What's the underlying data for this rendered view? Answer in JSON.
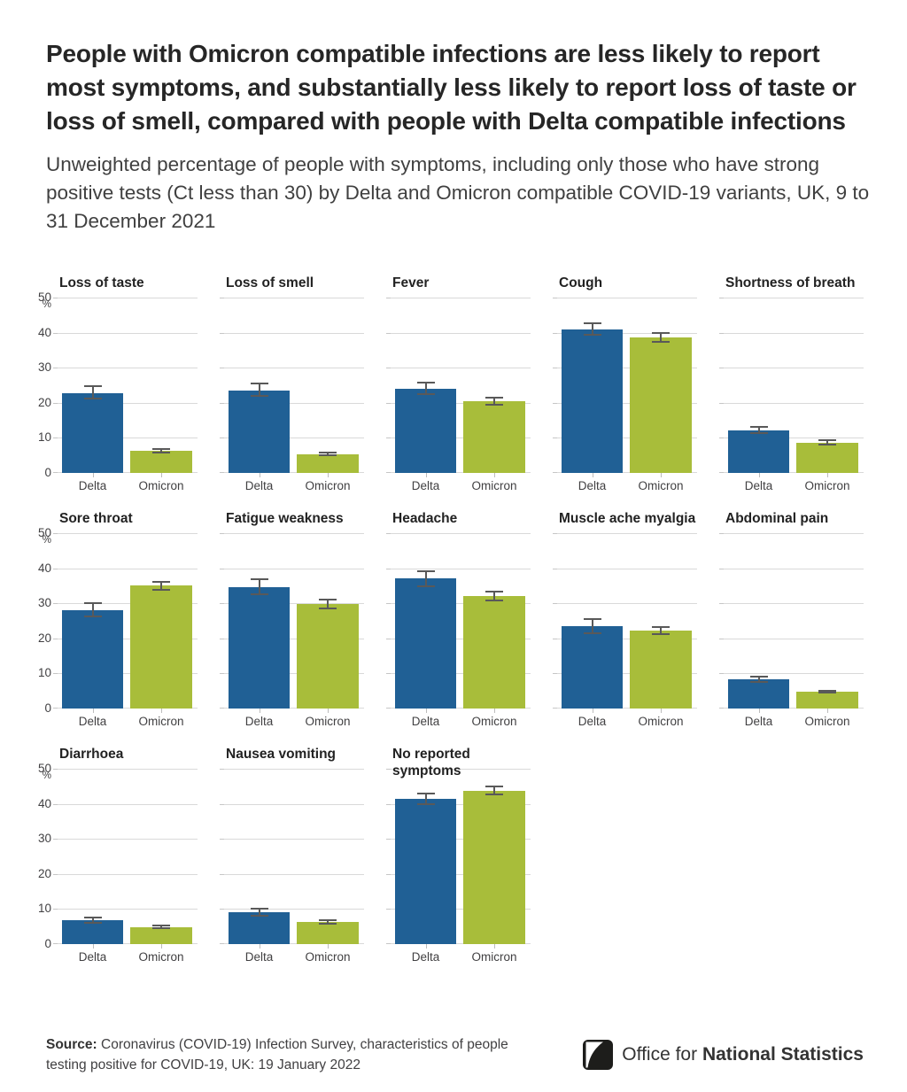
{
  "page": {
    "title": "People with Omicron compatible infections are less likely to report most symptoms, and substantially less likely to report loss of taste or loss of smell, compared with people with Delta compatible infections",
    "subtitle": "Unweighted percentage of people with symptoms, including only those who have strong positive tests (Ct less than 30) by Delta and Omicron compatible COVID-19 variants, UK, 9 to 31 December 2021",
    "source_label": "Source:",
    "source_text": " Coronavirus (COVID-19) Infection Survey, characteristics of people testing positive for COVID-19, UK: 19 January 2022",
    "logo_regular": "Office for ",
    "logo_bold": "National Statistics"
  },
  "colors": {
    "delta": "#206095",
    "omicron": "#a8bd3a",
    "error_bar": "#595959",
    "gridline": "#d9d9d9",
    "title_text": "#262626",
    "body_text": "#414042"
  },
  "chart_data": {
    "type": "bar",
    "categories": [
      "Delta",
      "Omicron"
    ],
    "series_colors": {
      "Delta": "#206095",
      "Omicron": "#a8bd3a"
    },
    "unit": "%",
    "ylim": [
      0,
      50
    ],
    "yticks": [
      0,
      10,
      20,
      30,
      40,
      50
    ],
    "grid": true,
    "error_bars": true,
    "panels": [
      {
        "title_lines": [
          "Loss of taste"
        ],
        "values": [
          22.8,
          6.2
        ],
        "ci_low": [
          21.0,
          5.5
        ],
        "ci_high": [
          25.0,
          7.0
        ],
        "show_axis": true
      },
      {
        "title_lines": [
          "Loss of smell"
        ],
        "values": [
          23.6,
          5.4
        ],
        "ci_low": [
          21.6,
          4.7
        ],
        "ci_high": [
          25.8,
          6.1
        ],
        "show_axis": false
      },
      {
        "title_lines": [
          "Fever"
        ],
        "values": [
          24.0,
          20.4
        ],
        "ci_low": [
          22.2,
          19.1
        ],
        "ci_high": [
          26.0,
          21.6
        ],
        "show_axis": false
      },
      {
        "title_lines": [
          "Cough"
        ],
        "values": [
          41.0,
          38.6
        ],
        "ci_low": [
          39.1,
          37.2
        ],
        "ci_high": [
          42.9,
          40.1
        ],
        "show_axis": false
      },
      {
        "title_lines": [
          "Shortness of breath"
        ],
        "values": [
          12.2,
          8.6
        ],
        "ci_low": [
          11.0,
          7.8
        ],
        "ci_high": [
          13.5,
          9.5
        ],
        "show_axis": false
      },
      {
        "title_lines": [
          "Sore throat"
        ],
        "values": [
          28.0,
          35.0
        ],
        "ci_low": [
          26.0,
          33.6
        ],
        "ci_high": [
          30.2,
          36.4
        ],
        "show_axis": true
      },
      {
        "title_lines": [
          "Fatigue weakness"
        ],
        "values": [
          34.7,
          29.7
        ],
        "ci_low": [
          32.4,
          28.3
        ],
        "ci_high": [
          37.2,
          31.2
        ],
        "show_axis": false
      },
      {
        "title_lines": [
          "Headache"
        ],
        "values": [
          37.1,
          32.1
        ],
        "ci_low": [
          34.7,
          30.6
        ],
        "ci_high": [
          39.5,
          33.6
        ],
        "show_axis": false
      },
      {
        "title_lines": [
          "Muscle ache myalgia"
        ],
        "values": [
          23.6,
          22.3
        ],
        "ci_low": [
          21.3,
          21.0
        ],
        "ci_high": [
          25.8,
          23.6
        ],
        "show_axis": false
      },
      {
        "title_lines": [
          "Abdominal pain"
        ],
        "values": [
          8.3,
          4.7
        ],
        "ci_low": [
          7.4,
          4.2
        ],
        "ci_high": [
          9.4,
          5.3
        ],
        "show_axis": false
      },
      {
        "title_lines": [
          "Diarrhoea"
        ],
        "values": [
          6.7,
          4.8
        ],
        "ci_low": [
          5.8,
          4.2
        ],
        "ci_high": [
          7.8,
          5.6
        ],
        "show_axis": true
      },
      {
        "title_lines": [
          "Nausea vomiting"
        ],
        "values": [
          9.0,
          6.3
        ],
        "ci_low": [
          7.9,
          5.6
        ],
        "ci_high": [
          10.3,
          7.1
        ],
        "show_axis": false
      },
      {
        "title_lines": [
          "No reported",
          "symptoms"
        ],
        "values": [
          41.4,
          43.8
        ],
        "ci_low": [
          39.6,
          42.4
        ],
        "ci_high": [
          43.2,
          45.1
        ],
        "show_axis": false
      }
    ]
  }
}
